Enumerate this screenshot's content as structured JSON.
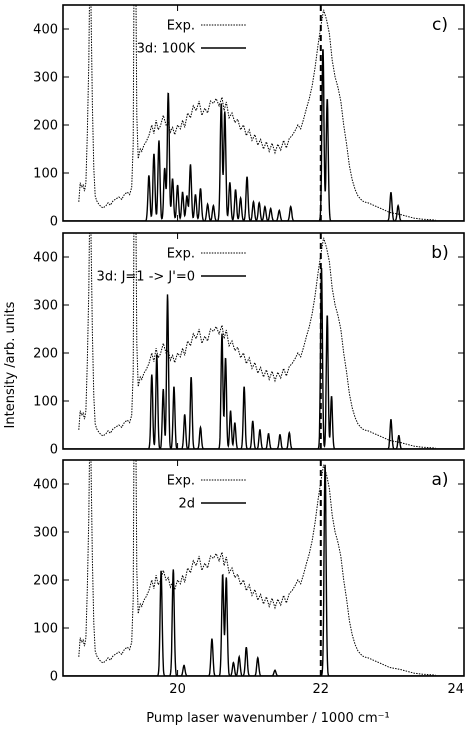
{
  "chart_data": {
    "type": "line",
    "xlabel": "Pump laser wavenumber / 1000 cm⁻¹",
    "ylabel": "Intensity /arb. units",
    "xlim": [
      18.4,
      24
    ],
    "x_ticks": [
      "20",
      "22",
      "24"
    ],
    "x_tick_values": [
      20,
      22,
      24
    ],
    "reference_line_x": 22.0,
    "panels": [
      {
        "id": "c",
        "tag": "c)",
        "ylim": [
          0,
          450
        ],
        "y_ticks": [
          "0",
          "100",
          "200",
          "300",
          "400"
        ],
        "y_tick_values": [
          0,
          100,
          200,
          300,
          400
        ],
        "legend_position": "top-center",
        "series": [
          {
            "name": "Exp.",
            "style": "dotted"
          },
          {
            "name": "3d: 100K",
            "style": "solid"
          }
        ],
        "theory_peaks": [
          [
            19.6,
            95
          ],
          [
            19.67,
            140
          ],
          [
            19.74,
            168
          ],
          [
            19.82,
            110
          ],
          [
            19.87,
            268
          ],
          [
            19.93,
            88
          ],
          [
            20.0,
            75
          ],
          [
            20.07,
            60
          ],
          [
            20.13,
            52
          ],
          [
            20.18,
            118
          ],
          [
            20.25,
            55
          ],
          [
            20.32,
            68
          ],
          [
            20.42,
            35
          ],
          [
            20.5,
            32
          ],
          [
            20.61,
            245
          ],
          [
            20.66,
            228
          ],
          [
            20.73,
            80
          ],
          [
            20.81,
            65
          ],
          [
            20.88,
            48
          ],
          [
            20.97,
            92
          ],
          [
            21.06,
            40
          ],
          [
            21.14,
            38
          ],
          [
            21.22,
            30
          ],
          [
            21.3,
            26
          ],
          [
            21.42,
            22
          ],
          [
            21.58,
            30
          ],
          [
            22.03,
            360
          ],
          [
            22.09,
            255
          ],
          [
            22.98,
            60
          ],
          [
            23.08,
            32
          ]
        ],
        "theory_width": 0.014
      },
      {
        "id": "b",
        "tag": "b)",
        "ylim": [
          0,
          450
        ],
        "y_ticks": [
          "0",
          "100",
          "200",
          "300",
          "400"
        ],
        "y_tick_values": [
          0,
          100,
          200,
          300,
          400
        ],
        "legend_position": "top-center",
        "series": [
          {
            "name": "Exp.",
            "style": "dotted"
          },
          {
            "name": "3d: J=1 -> J'=0",
            "style": "solid"
          }
        ],
        "theory_peaks": [
          [
            19.64,
            155
          ],
          [
            19.71,
            198
          ],
          [
            19.8,
            125
          ],
          [
            19.86,
            322
          ],
          [
            19.95,
            130
          ],
          [
            20.1,
            72
          ],
          [
            20.19,
            150
          ],
          [
            20.32,
            45
          ],
          [
            20.62,
            240
          ],
          [
            20.67,
            190
          ],
          [
            20.74,
            80
          ],
          [
            20.8,
            55
          ],
          [
            20.93,
            130
          ],
          [
            21.05,
            58
          ],
          [
            21.15,
            40
          ],
          [
            21.27,
            32
          ],
          [
            21.43,
            30
          ],
          [
            21.56,
            34
          ],
          [
            22.01,
            380
          ],
          [
            22.09,
            280
          ],
          [
            22.15,
            110
          ],
          [
            22.98,
            62
          ],
          [
            23.09,
            28
          ]
        ],
        "theory_width": 0.013
      },
      {
        "id": "a",
        "tag": "a)",
        "ylim": [
          0,
          450
        ],
        "y_ticks": [
          "0",
          "100",
          "200",
          "300",
          "400"
        ],
        "y_tick_values": [
          0,
          100,
          200,
          300,
          400
        ],
        "legend_position": "top-center",
        "series": [
          {
            "name": "Exp.",
            "style": "dotted"
          },
          {
            "name": "2d",
            "style": "solid"
          }
        ],
        "theory_peaks": [
          [
            19.77,
            220
          ],
          [
            19.94,
            222
          ],
          [
            20.09,
            22
          ],
          [
            20.48,
            78
          ],
          [
            20.63,
            212
          ],
          [
            20.68,
            205
          ],
          [
            20.78,
            28
          ],
          [
            20.86,
            40
          ],
          [
            20.96,
            60
          ],
          [
            21.12,
            38
          ],
          [
            21.36,
            12
          ],
          [
            22.06,
            440
          ]
        ],
        "theory_width": 0.014
      }
    ],
    "experimental_spectrum": [
      [
        18.62,
        40
      ],
      [
        18.64,
        80
      ],
      [
        18.66,
        70
      ],
      [
        18.68,
        75
      ],
      [
        18.7,
        62
      ],
      [
        18.72,
        80
      ],
      [
        18.74,
        180
      ],
      [
        18.76,
        330
      ],
      [
        18.77,
        460
      ],
      [
        18.79,
        460
      ],
      [
        18.81,
        240
      ],
      [
        18.83,
        110
      ],
      [
        18.85,
        52
      ],
      [
        18.87,
        42
      ],
      [
        18.9,
        35
      ],
      [
        18.93,
        30
      ],
      [
        18.96,
        27
      ],
      [
        19.0,
        32
      ],
      [
        19.03,
        38
      ],
      [
        19.06,
        33
      ],
      [
        19.1,
        42
      ],
      [
        19.14,
        46
      ],
      [
        19.18,
        50
      ],
      [
        19.22,
        45
      ],
      [
        19.26,
        56
      ],
      [
        19.3,
        60
      ],
      [
        19.33,
        55
      ],
      [
        19.36,
        70
      ],
      [
        19.38,
        160
      ],
      [
        19.39,
        460
      ],
      [
        19.42,
        460
      ],
      [
        19.43,
        220
      ],
      [
        19.45,
        130
      ],
      [
        19.48,
        150
      ],
      [
        19.5,
        145
      ],
      [
        19.53,
        158
      ],
      [
        19.56,
        165
      ],
      [
        19.6,
        178
      ],
      [
        19.64,
        200
      ],
      [
        19.67,
        182
      ],
      [
        19.7,
        210
      ],
      [
        19.73,
        190
      ],
      [
        19.76,
        198
      ],
      [
        19.8,
        220
      ],
      [
        19.84,
        200
      ],
      [
        19.87,
        205
      ],
      [
        19.9,
        185
      ],
      [
        19.93,
        195
      ],
      [
        19.96,
        180
      ],
      [
        20.0,
        200
      ],
      [
        20.04,
        192
      ],
      [
        20.07,
        210
      ],
      [
        20.1,
        195
      ],
      [
        20.14,
        225
      ],
      [
        20.18,
        215
      ],
      [
        20.22,
        240
      ],
      [
        20.26,
        230
      ],
      [
        20.3,
        250
      ],
      [
        20.34,
        220
      ],
      [
        20.38,
        235
      ],
      [
        20.42,
        225
      ],
      [
        20.46,
        250
      ],
      [
        20.5,
        245
      ],
      [
        20.54,
        255
      ],
      [
        20.58,
        240
      ],
      [
        20.62,
        258
      ],
      [
        20.65,
        230
      ],
      [
        20.68,
        248
      ],
      [
        20.72,
        215
      ],
      [
        20.76,
        225
      ],
      [
        20.8,
        205
      ],
      [
        20.84,
        212
      ],
      [
        20.88,
        190
      ],
      [
        20.92,
        200
      ],
      [
        20.96,
        178
      ],
      [
        21.0,
        190
      ],
      [
        21.04,
        168
      ],
      [
        21.08,
        180
      ],
      [
        21.12,
        158
      ],
      [
        21.16,
        170
      ],
      [
        21.2,
        150
      ],
      [
        21.24,
        165
      ],
      [
        21.28,
        145
      ],
      [
        21.32,
        162
      ],
      [
        21.36,
        142
      ],
      [
        21.4,
        160
      ],
      [
        21.44,
        148
      ],
      [
        21.48,
        168
      ],
      [
        21.52,
        152
      ],
      [
        21.56,
        172
      ],
      [
        21.6,
        178
      ],
      [
        21.64,
        188
      ],
      [
        21.68,
        200
      ],
      [
        21.72,
        192
      ],
      [
        21.76,
        212
      ],
      [
        21.8,
        235
      ],
      [
        21.84,
        255
      ],
      [
        21.88,
        282
      ],
      [
        21.92,
        320
      ],
      [
        21.96,
        365
      ],
      [
        22.0,
        405
      ],
      [
        22.04,
        440
      ],
      [
        22.08,
        420
      ],
      [
        22.12,
        390
      ],
      [
        22.16,
        335
      ],
      [
        22.2,
        300
      ],
      [
        22.24,
        278
      ],
      [
        22.28,
        250
      ],
      [
        22.32,
        200
      ],
      [
        22.36,
        160
      ],
      [
        22.4,
        115
      ],
      [
        22.44,
        85
      ],
      [
        22.48,
        65
      ],
      [
        22.52,
        52
      ],
      [
        22.56,
        45
      ],
      [
        22.6,
        40
      ],
      [
        22.66,
        38
      ],
      [
        22.72,
        34
      ],
      [
        22.78,
        30
      ],
      [
        22.84,
        26
      ],
      [
        22.9,
        22
      ],
      [
        22.96,
        18
      ],
      [
        23.02,
        16
      ],
      [
        23.1,
        14
      ],
      [
        23.2,
        10
      ],
      [
        23.3,
        6
      ],
      [
        23.4,
        4
      ],
      [
        23.5,
        3
      ],
      [
        23.6,
        2
      ]
    ]
  }
}
